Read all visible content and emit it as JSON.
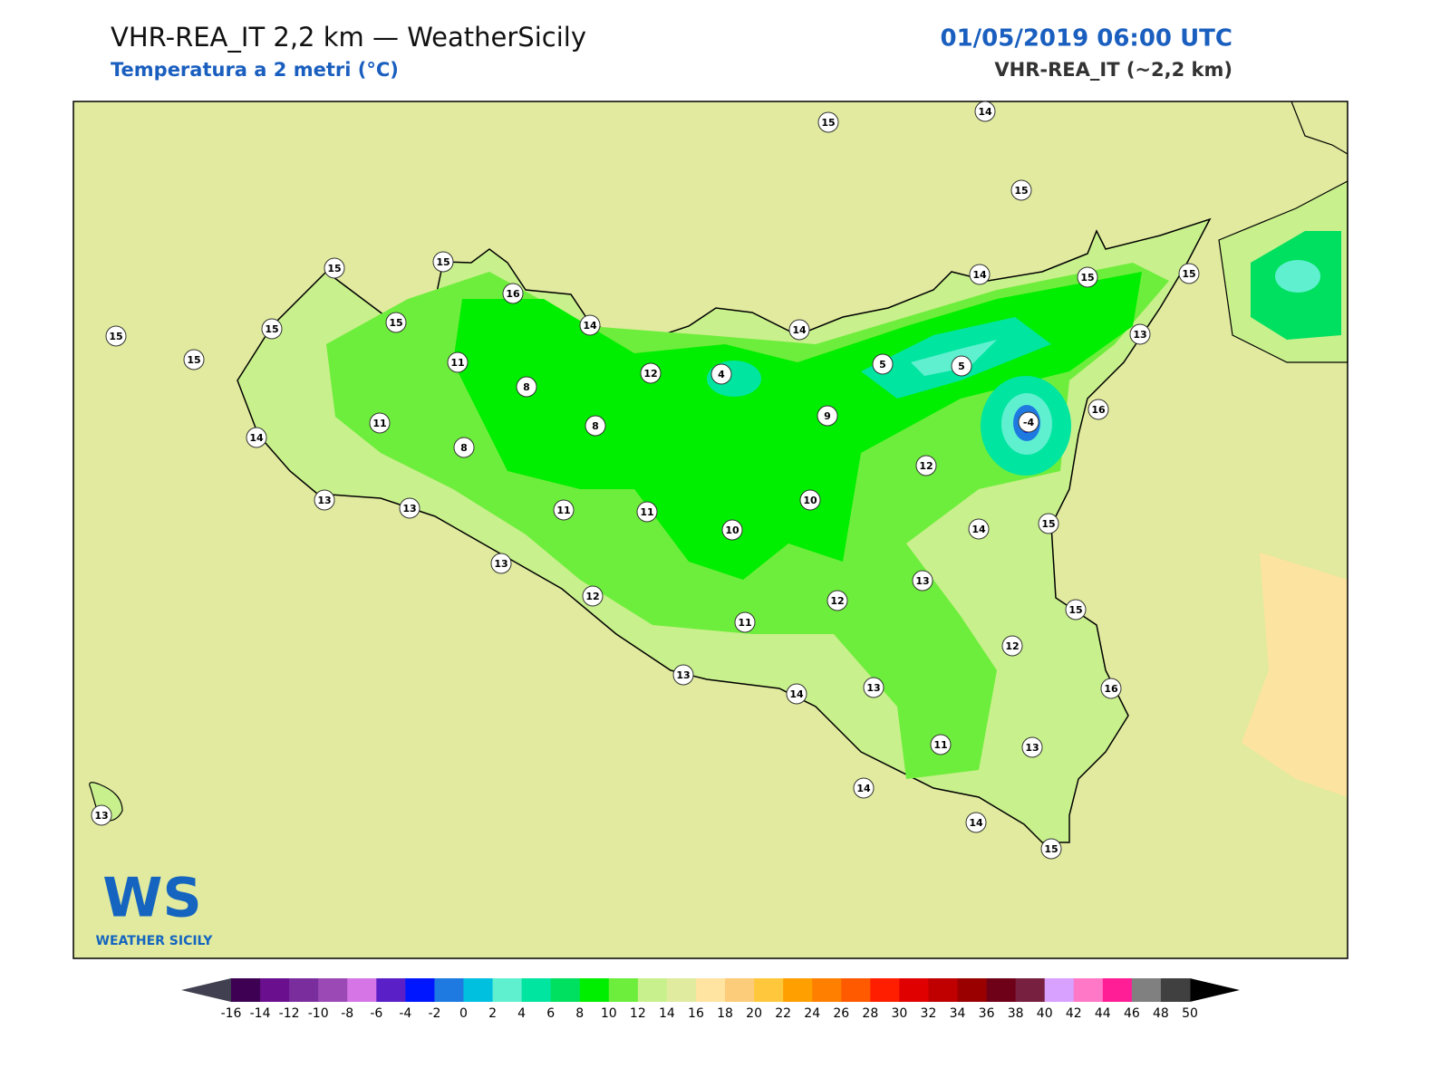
{
  "header": {
    "title": "VHR-REA_IT 2,2 km — WeatherSicily",
    "subtitle": "Temperatura a 2 metri (°C)",
    "date": "01/05/2019 06:00 UTC",
    "model": "VHR-REA_IT (~2,2 km)"
  },
  "stations": [
    15,
    14,
    15,
    15,
    15,
    16,
    15,
    15,
    15,
    15,
    14,
    14,
    14,
    15,
    15,
    13,
    11,
    8,
    12,
    4,
    5,
    5,
    -4,
    16,
    11,
    8,
    9,
    14,
    8,
    12,
    13,
    13,
    11,
    11,
    10,
    10,
    14,
    15,
    13,
    13,
    12,
    12,
    15,
    11,
    12,
    13,
    13,
    14,
    16,
    11,
    13,
    14,
    13,
    14,
    15
  ],
  "logo": {
    "mark": "WS",
    "name": "WEATHER SICILY"
  },
  "colorbar": {
    "ticks": [
      -16,
      -14,
      -12,
      -10,
      -8,
      -6,
      -4,
      -2,
      0,
      2,
      4,
      6,
      8,
      10,
      12,
      14,
      16,
      18,
      20,
      22,
      24,
      26,
      28,
      30,
      32,
      34,
      36,
      38,
      40,
      42,
      44,
      46,
      48,
      50
    ],
    "colors": [
      "#3d0052",
      "#6a0f8e",
      "#7a2e9e",
      "#9b4ab5",
      "#d676e6",
      "#5a1fc7",
      "#0016ff",
      "#1e7ae0",
      "#00c0e0",
      "#5ff0d0",
      "#00e5a0",
      "#00e060",
      "#00ee00",
      "#6eee3c",
      "#c8f08c",
      "#e0eba0",
      "#ffe3a0",
      "#fccc7a",
      "#ffc83c",
      "#ffa000",
      "#ff8000",
      "#ff5a00",
      "#ff1e00",
      "#e00000",
      "#c00000",
      "#9a0000",
      "#6e0018",
      "#782040",
      "#d8a0ff",
      "#ff78c8",
      "#ff1e96",
      "#808080",
      "#404040"
    ],
    "under_color": "#404050",
    "over_color": "#000000"
  }
}
